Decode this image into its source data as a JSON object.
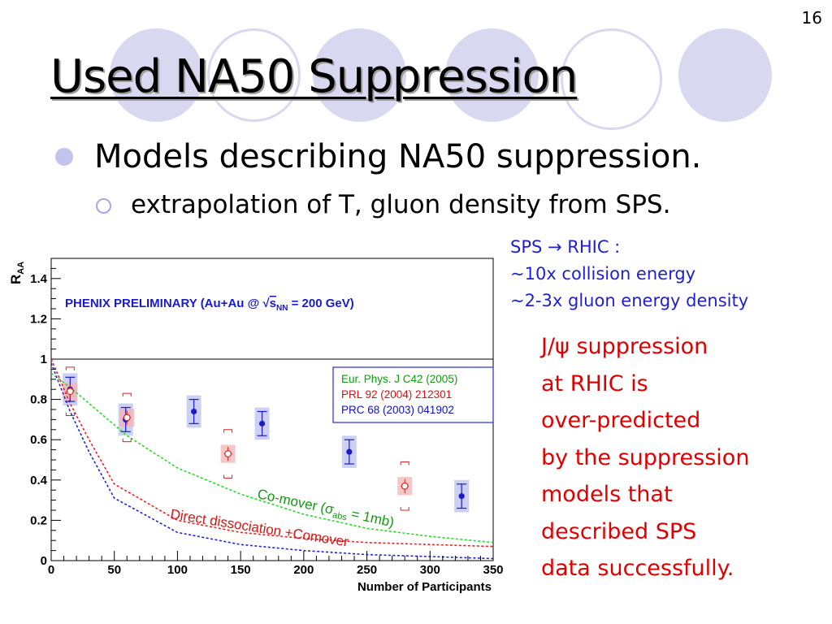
{
  "slide": {
    "number": "16",
    "title": "Used NA50 Suppression",
    "bullet": "Models describing NA50 suppression.",
    "sub_bullet": "extrapolation of T, gluon density from SPS.",
    "side_note": [
      "SPS → RHIC :",
      "~10x collision energy",
      "~2-3x gluon energy density"
    ],
    "conclusion_title": "J/ψ suppression",
    "conclusion": [
      "at RHIC is",
      "over-predicted",
      "by the suppression",
      "models that",
      "described SPS",
      "data successfully."
    ]
  },
  "colors": {
    "accent": "#d8d8f0",
    "blue_text": "#1f1fd0",
    "red_text": "#e00000",
    "green_curve": "#22dd22",
    "red_curve": "#ee2222",
    "blue_curve": "#2222dd"
  },
  "chart_data": {
    "type": "scatter",
    "title": "PHENIX PRELIMINARY (Au+Au @ √sNN = 200 GeV)",
    "title_parts": {
      "prefix": "PHENIX PRELIMINARY (Au+Au @ ",
      "root": "√",
      "s": "s",
      "sub": "NN",
      "suffix": " = 200 GeV)"
    },
    "xlabel": "Number of Participants",
    "ylabel_main": "R",
    "ylabel_sub": "AA",
    "xlim": [
      0,
      350
    ],
    "ylim": [
      0,
      1.5
    ],
    "x_ticks": [
      "0",
      "50",
      "100",
      "150",
      "200",
      "250",
      "300",
      "350"
    ],
    "y_ticks": [
      "0",
      "0.2",
      "0.4",
      "0.6",
      "0.8",
      "1",
      "1.2",
      "1.4"
    ],
    "reference_line": 1,
    "legend": [
      "Eur. Phys. J C42 (2005)",
      "PRL 92 (2004) 212301",
      "PRC 68 (2003) 041902"
    ],
    "annotations": {
      "comover": {
        "prefix": "Co-mover (",
        "sigma": "σ",
        "sub": "abs",
        "suffix": " = 1mb)"
      },
      "direct": "Direct dissociation +Comover"
    },
    "series": [
      {
        "marker": "filled-circle",
        "x": [
          15,
          59,
          113,
          167,
          236,
          325
        ],
        "y": [
          0.85,
          0.7,
          0.74,
          0.68,
          0.54,
          0.32
        ]
      },
      {
        "marker": "open-circle",
        "x": [
          15,
          60,
          140,
          280
        ],
        "y": [
          0.84,
          0.71,
          0.53,
          0.37
        ]
      }
    ],
    "curves": [
      {
        "color": "green",
        "x": [
          0,
          15,
          30,
          60,
          100,
          150,
          200,
          250,
          300,
          350
        ],
        "y": [
          0.93,
          0.86,
          0.78,
          0.62,
          0.46,
          0.33,
          0.23,
          0.16,
          0.12,
          0.09
        ]
      },
      {
        "color": "red",
        "x": [
          0,
          15,
          30,
          50,
          100,
          150,
          200,
          250,
          300,
          350
        ],
        "y": [
          1.0,
          0.78,
          0.6,
          0.38,
          0.2,
          0.14,
          0.11,
          0.09,
          0.08,
          0.07
        ]
      },
      {
        "color": "blue",
        "x": [
          0,
          15,
          30,
          50,
          100,
          150,
          200,
          250,
          300,
          350
        ],
        "y": [
          0.98,
          0.74,
          0.54,
          0.31,
          0.14,
          0.08,
          0.05,
          0.03,
          0.02,
          0.01
        ]
      }
    ]
  }
}
